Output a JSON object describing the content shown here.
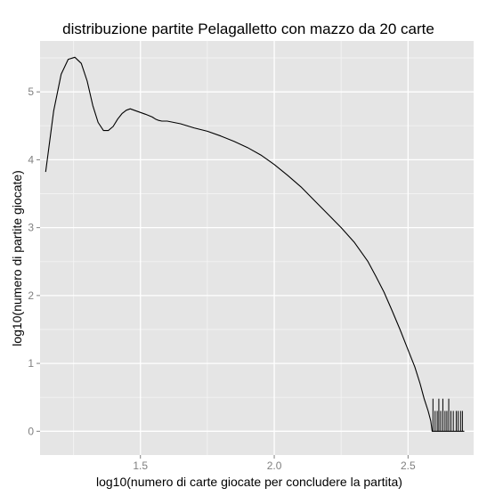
{
  "chart_data": {
    "type": "line",
    "title": "distribuzione partite Pelagalletto con mazzo da 20 carte",
    "xlabel": "log10(numero di carte giocate per concludere la partita)",
    "ylabel": "log10(numero di partite giocate)",
    "xlim": [
      1.125,
      2.745
    ],
    "ylim": [
      -0.35,
      5.75
    ],
    "x_ticks": [
      1.5,
      2.0,
      2.5
    ],
    "x_tick_labels": [
      "1.5",
      "2.0",
      "2.5"
    ],
    "y_ticks": [
      0,
      1,
      2,
      3,
      4,
      5
    ],
    "y_tick_labels": [
      "0",
      "1",
      "2",
      "3",
      "4",
      "5"
    ],
    "grid": true,
    "legend": "none",
    "colors": {
      "panel": "#e5e5e5",
      "grid": "#ffffff",
      "line": "#000000",
      "tick": "#7f7f7f"
    },
    "series": [
      {
        "values_xy": [
          [
            1.146,
            3.82
          ],
          [
            1.176,
            4.72
          ],
          [
            1.204,
            5.26
          ],
          [
            1.23,
            5.48
          ],
          [
            1.255,
            5.51
          ],
          [
            1.279,
            5.42
          ],
          [
            1.301,
            5.16
          ],
          [
            1.322,
            4.8
          ],
          [
            1.342,
            4.55
          ],
          [
            1.362,
            4.43
          ],
          [
            1.38,
            4.43
          ],
          [
            1.398,
            4.49
          ],
          [
            1.415,
            4.6
          ],
          [
            1.431,
            4.68
          ],
          [
            1.447,
            4.73
          ],
          [
            1.462,
            4.75
          ],
          [
            1.477,
            4.73
          ],
          [
            1.491,
            4.71
          ],
          [
            1.505,
            4.69
          ],
          [
            1.519,
            4.67
          ],
          [
            1.532,
            4.65
          ],
          [
            1.544,
            4.63
          ],
          [
            1.556,
            4.6
          ],
          [
            1.568,
            4.58
          ],
          [
            1.58,
            4.57
          ],
          [
            1.6,
            4.57
          ],
          [
            1.65,
            4.53
          ],
          [
            1.7,
            4.47
          ],
          [
            1.75,
            4.42
          ],
          [
            1.8,
            4.35
          ],
          [
            1.85,
            4.27
          ],
          [
            1.9,
            4.18
          ],
          [
            1.95,
            4.07
          ],
          [
            2.0,
            3.93
          ],
          [
            2.05,
            3.77
          ],
          [
            2.1,
            3.6
          ],
          [
            2.15,
            3.4
          ],
          [
            2.2,
            3.2
          ],
          [
            2.25,
            3.0
          ],
          [
            2.3,
            2.78
          ],
          [
            2.35,
            2.5
          ],
          [
            2.38,
            2.28
          ],
          [
            2.41,
            2.05
          ],
          [
            2.44,
            1.78
          ],
          [
            2.47,
            1.5
          ],
          [
            2.5,
            1.2
          ],
          [
            2.525,
            0.95
          ],
          [
            2.545,
            0.7
          ],
          [
            2.56,
            0.48
          ],
          [
            2.575,
            0.3
          ],
          [
            2.585,
            0.15
          ],
          [
            2.59,
            0.0
          ],
          [
            2.6,
            0.0
          ],
          [
            2.62,
            0.0
          ],
          [
            2.65,
            0.0
          ],
          [
            2.68,
            0.0
          ],
          [
            2.71,
            0.0
          ]
        ],
        "spikes_x": [
          2.593,
          2.601,
          2.609,
          2.615,
          2.622,
          2.63,
          2.638,
          2.645,
          2.652,
          2.66,
          2.669,
          2.68,
          2.687,
          2.696,
          2.703
        ],
        "spikes_y": [
          0.48,
          0.3,
          0.3,
          0.48,
          0.3,
          0.48,
          0.3,
          0.3,
          0.48,
          0.3,
          0.3,
          0.3,
          0.3,
          0.3,
          0.3
        ]
      }
    ]
  }
}
